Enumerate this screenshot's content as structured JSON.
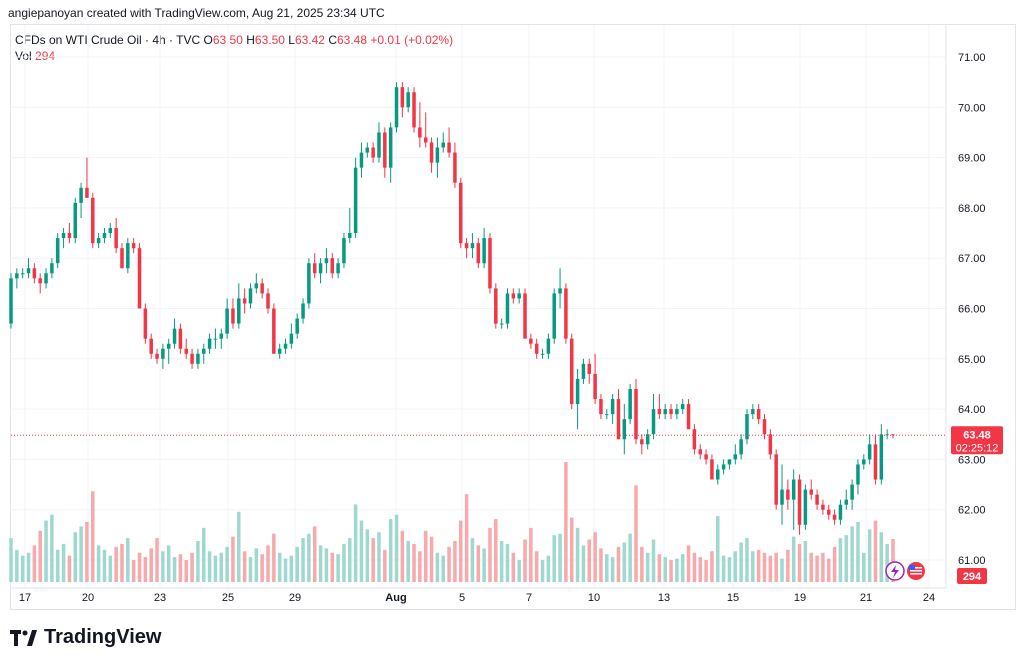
{
  "header": {
    "credit": "angiepanoyan created with TradingView.com, Aug 21, 2025 23:34 UTC"
  },
  "legend": {
    "symbol": "CFDs on WTI Crude Oil · 4h · TVC",
    "o_label": "O",
    "o_val": "63.50",
    "h_label": "H",
    "h_val": "63.50",
    "l_label": "L",
    "l_val": "63.42",
    "c_label": "C",
    "c_val": "63.48",
    "change": "+0.01 (+0.02%)",
    "vol_label": "Vol",
    "vol_val": "294"
  },
  "price_tag": {
    "price": "63.48",
    "countdown": "02:25:12"
  },
  "volume_tag": "294",
  "brand": {
    "name": "TradingView"
  },
  "colors": {
    "up": "#089981",
    "down": "#f23645",
    "up_vol": "#9fd8cf",
    "down_vol": "#f7a9ab",
    "grid": "#f0f3fa",
    "text": "#131722"
  },
  "chart_data": {
    "type": "candlestick",
    "title": "CFDs on WTI Crude Oil · 4h · TVC",
    "y_ticks": [
      "71.00",
      "70.00",
      "69.00",
      "68.00",
      "67.00",
      "66.00",
      "65.00",
      "64.00",
      "63.00",
      "62.00",
      "61.00"
    ],
    "ylim": [
      60.5,
      71.5
    ],
    "x_ticks": [
      "17",
      "20",
      "23",
      "25",
      "29",
      "Aug",
      "5",
      "7",
      "10",
      "13",
      "15",
      "19",
      "21",
      "24"
    ],
    "last_close": 63.48,
    "candles": [
      [
        65.7,
        66.7,
        65.6,
        66.6,
        300
      ],
      [
        66.6,
        66.8,
        66.4,
        66.7,
        220
      ],
      [
        66.7,
        66.8,
        66.6,
        66.7,
        180
      ],
      [
        66.7,
        67.0,
        66.6,
        66.8,
        200
      ],
      [
        66.8,
        66.9,
        66.5,
        66.6,
        250
      ],
      [
        66.6,
        66.7,
        66.3,
        66.5,
        350
      ],
      [
        66.5,
        66.8,
        66.4,
        66.7,
        420
      ],
      [
        66.7,
        67.0,
        66.6,
        66.9,
        460
      ],
      [
        66.9,
        67.5,
        66.8,
        67.4,
        220
      ],
      [
        67.4,
        67.6,
        67.2,
        67.5,
        260
      ],
      [
        67.5,
        67.7,
        67.3,
        67.4,
        180
      ],
      [
        67.4,
        68.2,
        67.3,
        68.1,
        340
      ],
      [
        68.1,
        68.5,
        67.8,
        68.4,
        380
      ],
      [
        68.4,
        69.0,
        68.2,
        68.2,
        410
      ],
      [
        68.2,
        68.3,
        67.2,
        67.3,
        620
      ],
      [
        67.3,
        67.5,
        67.2,
        67.4,
        250
      ],
      [
        67.4,
        67.6,
        67.3,
        67.5,
        220
      ],
      [
        67.5,
        67.7,
        67.4,
        67.6,
        180
      ],
      [
        67.6,
        67.8,
        67.1,
        67.2,
        240
      ],
      [
        67.2,
        67.3,
        66.8,
        66.8,
        260
      ],
      [
        66.8,
        67.4,
        66.7,
        67.3,
        300
      ],
      [
        67.3,
        67.4,
        67.1,
        67.2,
        150
      ],
      [
        67.2,
        67.3,
        66.0,
        66.0,
        200
      ],
      [
        66.0,
        66.1,
        65.3,
        65.4,
        170
      ],
      [
        65.4,
        65.5,
        65.0,
        65.1,
        230
      ],
      [
        65.1,
        65.2,
        64.9,
        65.0,
        300
      ],
      [
        65.0,
        65.3,
        64.8,
        65.2,
        210
      ],
      [
        65.2,
        65.4,
        64.9,
        65.3,
        250
      ],
      [
        65.3,
        65.8,
        65.2,
        65.6,
        170
      ],
      [
        65.6,
        65.7,
        65.1,
        65.2,
        190
      ],
      [
        65.2,
        65.4,
        65.0,
        65.1,
        150
      ],
      [
        65.1,
        65.2,
        64.8,
        64.9,
        200
      ],
      [
        64.9,
        65.2,
        64.8,
        65.1,
        280
      ],
      [
        65.1,
        65.3,
        64.9,
        65.2,
        370
      ],
      [
        65.2,
        65.5,
        65.1,
        65.4,
        210
      ],
      [
        65.4,
        65.6,
        65.2,
        65.4,
        180
      ],
      [
        65.4,
        65.6,
        65.2,
        65.5,
        200
      ],
      [
        65.5,
        66.2,
        65.4,
        66.0,
        240
      ],
      [
        66.0,
        66.2,
        65.6,
        65.7,
        310
      ],
      [
        65.7,
        66.5,
        65.6,
        66.2,
        480
      ],
      [
        66.2,
        66.4,
        65.9,
        66.1,
        210
      ],
      [
        66.1,
        66.5,
        66.0,
        66.4,
        170
      ],
      [
        66.4,
        66.7,
        66.3,
        66.5,
        230
      ],
      [
        66.5,
        66.6,
        66.2,
        66.3,
        190
      ],
      [
        66.3,
        66.4,
        65.9,
        66.0,
        250
      ],
      [
        66.0,
        66.1,
        65.1,
        65.1,
        330
      ],
      [
        65.1,
        65.3,
        65.0,
        65.2,
        200
      ],
      [
        65.2,
        65.4,
        65.1,
        65.3,
        160
      ],
      [
        65.3,
        65.7,
        65.2,
        65.5,
        180
      ],
      [
        65.5,
        65.9,
        65.4,
        65.8,
        240
      ],
      [
        65.8,
        66.2,
        65.7,
        66.1,
        300
      ],
      [
        66.1,
        67.0,
        66.0,
        66.9,
        330
      ],
      [
        66.9,
        67.1,
        66.6,
        66.7,
        380
      ],
      [
        66.7,
        67.0,
        66.5,
        66.9,
        250
      ],
      [
        66.9,
        67.2,
        66.7,
        67.0,
        230
      ],
      [
        67.0,
        67.1,
        66.6,
        66.7,
        200
      ],
      [
        66.7,
        67.0,
        66.6,
        66.9,
        190
      ],
      [
        66.9,
        67.5,
        66.8,
        67.4,
        260
      ],
      [
        67.4,
        68.0,
        67.3,
        67.5,
        300
      ],
      [
        67.5,
        69.0,
        67.4,
        68.8,
        530
      ],
      [
        68.8,
        69.3,
        68.6,
        69.1,
        420
      ],
      [
        69.1,
        69.3,
        69.0,
        69.2,
        360
      ],
      [
        69.2,
        69.3,
        68.9,
        69.0,
        300
      ],
      [
        69.0,
        69.7,
        68.9,
        69.5,
        340
      ],
      [
        69.5,
        69.6,
        68.6,
        68.8,
        220
      ],
      [
        68.8,
        69.7,
        68.5,
        69.6,
        430
      ],
      [
        69.6,
        70.5,
        69.5,
        70.4,
        460
      ],
      [
        70.4,
        70.5,
        69.8,
        70.0,
        350
      ],
      [
        70.0,
        70.4,
        69.9,
        70.3,
        280
      ],
      [
        70.3,
        70.4,
        69.5,
        69.6,
        260
      ],
      [
        69.6,
        70.1,
        69.2,
        69.4,
        210
      ],
      [
        69.4,
        69.9,
        69.2,
        69.3,
        350
      ],
      [
        69.3,
        69.4,
        68.7,
        68.9,
        310
      ],
      [
        68.9,
        69.4,
        68.6,
        69.2,
        200
      ],
      [
        69.2,
        69.5,
        69.1,
        69.3,
        180
      ],
      [
        69.3,
        69.6,
        69.0,
        69.1,
        240
      ],
      [
        69.1,
        69.3,
        68.4,
        68.5,
        280
      ],
      [
        68.5,
        68.6,
        67.2,
        67.3,
        420
      ],
      [
        67.3,
        67.4,
        67.0,
        67.2,
        600
      ],
      [
        67.2,
        67.5,
        67.0,
        67.3,
        300
      ],
      [
        67.3,
        67.4,
        66.8,
        66.9,
        250
      ],
      [
        66.9,
        67.6,
        66.8,
        67.4,
        230
      ],
      [
        67.4,
        67.5,
        66.3,
        66.4,
        370
      ],
      [
        66.4,
        66.5,
        65.6,
        65.7,
        430
      ],
      [
        65.7,
        65.8,
        65.6,
        65.7,
        280
      ],
      [
        65.7,
        66.4,
        65.6,
        66.3,
        260
      ],
      [
        66.3,
        66.4,
        66.1,
        66.2,
        200
      ],
      [
        66.2,
        66.4,
        66.1,
        66.3,
        150
      ],
      [
        66.3,
        66.4,
        65.4,
        65.4,
        290
      ],
      [
        65.4,
        65.5,
        65.2,
        65.3,
        370
      ],
      [
        65.3,
        65.4,
        65.0,
        65.1,
        210
      ],
      [
        65.1,
        65.2,
        65.0,
        65.1,
        150
      ],
      [
        65.1,
        65.5,
        65.0,
        65.4,
        180
      ],
      [
        65.4,
        66.4,
        65.3,
        66.3,
        320
      ],
      [
        66.3,
        66.8,
        66.0,
        66.4,
        330
      ],
      [
        66.4,
        66.5,
        65.3,
        65.4,
        820
      ],
      [
        65.4,
        65.5,
        64.0,
        64.1,
        440
      ],
      [
        64.1,
        64.8,
        63.6,
        64.6,
        370
      ],
      [
        64.6,
        65.0,
        64.5,
        64.9,
        250
      ],
      [
        64.9,
        65.0,
        64.5,
        64.7,
        290
      ],
      [
        64.7,
        65.1,
        64.1,
        64.2,
        340
      ],
      [
        64.2,
        64.3,
        63.8,
        63.9,
        230
      ],
      [
        63.9,
        64.0,
        63.8,
        63.9,
        190
      ],
      [
        63.9,
        64.3,
        63.7,
        64.2,
        170
      ],
      [
        64.2,
        64.4,
        63.4,
        63.4,
        240
      ],
      [
        63.4,
        64.1,
        63.1,
        63.8,
        270
      ],
      [
        63.8,
        64.5,
        63.7,
        64.4,
        330
      ],
      [
        64.4,
        64.6,
        63.3,
        63.4,
        660
      ],
      [
        63.4,
        63.5,
        63.1,
        63.3,
        240
      ],
      [
        63.3,
        63.6,
        63.2,
        63.5,
        200
      ],
      [
        63.5,
        64.3,
        63.4,
        64.0,
        290
      ],
      [
        64.0,
        64.3,
        63.8,
        63.9,
        190
      ],
      [
        63.9,
        64.1,
        63.8,
        64.0,
        170
      ],
      [
        64.0,
        64.1,
        63.8,
        63.9,
        150
      ],
      [
        63.9,
        64.1,
        63.8,
        64.0,
        160
      ],
      [
        64.0,
        64.2,
        63.9,
        64.1,
        190
      ],
      [
        64.1,
        64.2,
        63.6,
        63.6,
        250
      ],
      [
        63.6,
        63.7,
        63.1,
        63.2,
        200
      ],
      [
        63.2,
        63.3,
        63.0,
        63.1,
        170
      ],
      [
        63.1,
        63.2,
        62.9,
        63.0,
        150
      ],
      [
        63.0,
        63.1,
        62.6,
        62.6,
        210
      ],
      [
        62.6,
        62.9,
        62.5,
        62.8,
        450
      ],
      [
        62.8,
        63.0,
        62.7,
        62.9,
        180
      ],
      [
        62.9,
        63.0,
        62.8,
        63.0,
        170
      ],
      [
        63.0,
        63.3,
        62.9,
        63.1,
        210
      ],
      [
        63.1,
        63.5,
        63.0,
        63.4,
        270
      ],
      [
        63.4,
        64.0,
        63.3,
        63.9,
        300
      ],
      [
        63.9,
        64.1,
        63.8,
        64.0,
        210
      ],
      [
        64.0,
        64.1,
        63.7,
        63.8,
        220
      ],
      [
        63.8,
        63.9,
        63.4,
        63.5,
        200
      ],
      [
        63.5,
        63.6,
        63.0,
        63.1,
        180
      ],
      [
        63.1,
        63.2,
        62.0,
        62.1,
        200
      ],
      [
        62.1,
        62.9,
        61.7,
        62.4,
        160
      ],
      [
        62.4,
        62.6,
        62.0,
        62.2,
        220
      ],
      [
        62.2,
        62.8,
        61.6,
        62.6,
        310
      ],
      [
        62.6,
        62.7,
        61.5,
        61.7,
        260
      ],
      [
        61.7,
        62.5,
        61.6,
        62.4,
        280
      ],
      [
        62.4,
        62.6,
        62.2,
        62.3,
        200
      ],
      [
        62.3,
        62.4,
        62.0,
        62.1,
        180
      ],
      [
        62.1,
        62.2,
        61.9,
        62.0,
        200
      ],
      [
        62.0,
        62.1,
        61.8,
        61.9,
        160
      ],
      [
        61.9,
        62.0,
        61.7,
        61.8,
        240
      ],
      [
        61.8,
        62.2,
        61.7,
        62.1,
        300
      ],
      [
        62.1,
        62.4,
        62.0,
        62.2,
        320
      ],
      [
        62.2,
        62.6,
        62.0,
        62.5,
        380
      ],
      [
        62.5,
        63.0,
        62.3,
        62.9,
        410
      ],
      [
        62.9,
        63.1,
        62.8,
        63.0,
        200
      ],
      [
        63.0,
        63.5,
        62.9,
        63.3,
        360
      ],
      [
        63.3,
        63.5,
        62.5,
        62.6,
        420
      ],
      [
        62.6,
        63.7,
        62.5,
        63.5,
        340
      ],
      [
        63.5,
        63.6,
        63.4,
        63.5,
        260
      ],
      [
        63.5,
        63.5,
        63.42,
        63.48,
        294
      ]
    ]
  }
}
